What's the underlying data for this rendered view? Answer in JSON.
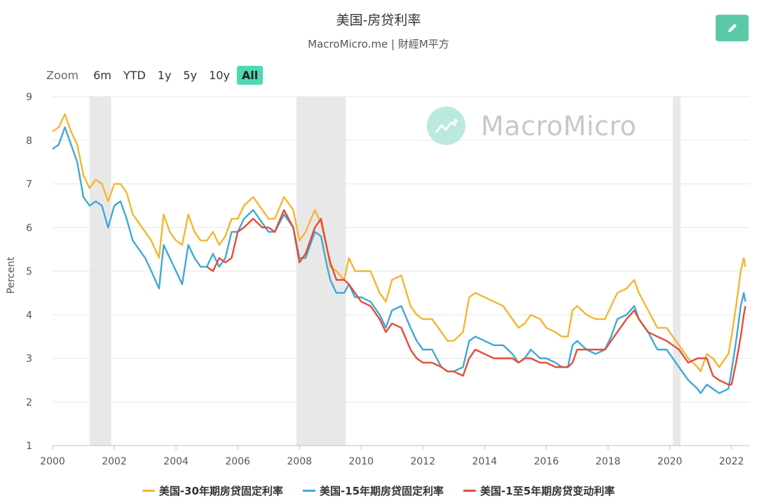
{
  "header": {
    "title": "美国-房贷利率",
    "subtitle": "MacroMicro.me | 財經M平方",
    "edit_icon": "pencil-icon"
  },
  "zoom": {
    "label": "Zoom",
    "buttons": [
      "6m",
      "YTD",
      "1y",
      "5y",
      "10y",
      "All"
    ],
    "active": "All"
  },
  "watermark": {
    "text": "MacroMicro"
  },
  "colors": {
    "s30": "#f5b531",
    "s15": "#3ea9d6",
    "arm": "#e54b3a",
    "recession": "#e8e8e8",
    "grid": "#e6e6e6",
    "accent": "#5bc9a8"
  },
  "chart_data": {
    "type": "line",
    "title": "美国-房贷利率",
    "ylabel": "Percent",
    "ylim": [
      1,
      9
    ],
    "yticks": [
      1,
      2,
      3,
      4,
      5,
      6,
      7,
      8,
      9
    ],
    "xlim": [
      2000.0,
      2022.6
    ],
    "xticks": [
      "2000",
      "2002",
      "2004",
      "2006",
      "2008",
      "2010",
      "2012",
      "2014",
      "2016",
      "2018",
      "2020",
      "2022"
    ],
    "grid": true,
    "legend_position": "bottom",
    "recession_bands": [
      [
        2001.2,
        2001.9
      ],
      [
        2007.9,
        2009.5
      ],
      [
        2020.1,
        2020.35
      ]
    ],
    "series": [
      {
        "name": "美国-30年期房贷固定利率",
        "x": [
          2000.0,
          2000.2,
          2000.4,
          2000.6,
          2000.8,
          2001.0,
          2001.2,
          2001.4,
          2001.6,
          2001.8,
          2002.0,
          2002.2,
          2002.4,
          2002.6,
          2002.8,
          2003.0,
          2003.2,
          2003.45,
          2003.6,
          2003.8,
          2004.0,
          2004.2,
          2004.4,
          2004.6,
          2004.8,
          2005.0,
          2005.2,
          2005.4,
          2005.6,
          2005.8,
          2006.0,
          2006.2,
          2006.5,
          2006.8,
          2007.0,
          2007.2,
          2007.5,
          2007.8,
          2008.0,
          2008.2,
          2008.5,
          2008.7,
          2008.9,
          2009.0,
          2009.2,
          2009.45,
          2009.6,
          2009.8,
          2010.0,
          2010.3,
          2010.6,
          2010.8,
          2011.0,
          2011.3,
          2011.6,
          2011.8,
          2012.0,
          2012.3,
          2012.6,
          2012.8,
          2013.0,
          2013.3,
          2013.5,
          2013.7,
          2014.0,
          2014.3,
          2014.6,
          2014.9,
          2015.1,
          2015.3,
          2015.5,
          2015.8,
          2016.0,
          2016.3,
          2016.5,
          2016.7,
          2016.85,
          2017.0,
          2017.3,
          2017.6,
          2017.9,
          2018.1,
          2018.3,
          2018.6,
          2018.85,
          2019.0,
          2019.3,
          2019.6,
          2019.9,
          2020.1,
          2020.3,
          2020.6,
          2020.9,
          2021.0,
          2021.2,
          2021.4,
          2021.6,
          2021.9,
          2022.0,
          2022.15,
          2022.3,
          2022.4,
          2022.45
        ],
        "values": [
          8.2,
          8.3,
          8.6,
          8.2,
          7.9,
          7.2,
          6.9,
          7.1,
          7.0,
          6.6,
          7.0,
          7.0,
          6.8,
          6.3,
          6.1,
          5.9,
          5.7,
          5.3,
          6.3,
          5.9,
          5.7,
          5.6,
          6.3,
          5.9,
          5.7,
          5.7,
          5.9,
          5.6,
          5.8,
          6.2,
          6.2,
          6.5,
          6.7,
          6.4,
          6.2,
          6.2,
          6.7,
          6.4,
          5.7,
          5.9,
          6.4,
          6.1,
          5.5,
          5.1,
          5.0,
          4.8,
          5.3,
          5.0,
          5.0,
          5.0,
          4.5,
          4.3,
          4.8,
          4.9,
          4.2,
          4.0,
          3.9,
          3.9,
          3.6,
          3.4,
          3.4,
          3.6,
          4.4,
          4.5,
          4.4,
          4.3,
          4.2,
          3.9,
          3.7,
          3.8,
          4.0,
          3.9,
          3.7,
          3.6,
          3.5,
          3.5,
          4.1,
          4.2,
          4.0,
          3.9,
          3.9,
          4.2,
          4.5,
          4.6,
          4.8,
          4.5,
          4.1,
          3.7,
          3.7,
          3.5,
          3.3,
          3.0,
          2.8,
          2.7,
          3.1,
          3.0,
          2.8,
          3.1,
          3.5,
          4.2,
          5.0,
          5.3,
          5.1
        ]
      },
      {
        "name": "美国-15年期房贷固定利率",
        "x": [
          2000.0,
          2000.2,
          2000.4,
          2000.6,
          2000.8,
          2001.0,
          2001.2,
          2001.4,
          2001.6,
          2001.8,
          2002.0,
          2002.2,
          2002.4,
          2002.6,
          2002.8,
          2003.0,
          2003.2,
          2003.45,
          2003.6,
          2003.8,
          2004.0,
          2004.2,
          2004.4,
          2004.6,
          2004.8,
          2005.0,
          2005.2,
          2005.4,
          2005.6,
          2005.8,
          2006.0,
          2006.2,
          2006.5,
          2006.8,
          2007.0,
          2007.2,
          2007.5,
          2007.8,
          2008.0,
          2008.2,
          2008.5,
          2008.7,
          2008.9,
          2009.0,
          2009.2,
          2009.45,
          2009.6,
          2009.8,
          2010.0,
          2010.3,
          2010.6,
          2010.8,
          2011.0,
          2011.3,
          2011.6,
          2011.8,
          2012.0,
          2012.3,
          2012.6,
          2012.8,
          2013.0,
          2013.3,
          2013.5,
          2013.7,
          2014.0,
          2014.3,
          2014.6,
          2014.9,
          2015.1,
          2015.3,
          2015.5,
          2015.8,
          2016.0,
          2016.3,
          2016.5,
          2016.7,
          2016.85,
          2017.0,
          2017.3,
          2017.6,
          2017.9,
          2018.1,
          2018.3,
          2018.6,
          2018.85,
          2019.0,
          2019.3,
          2019.6,
          2019.9,
          2020.1,
          2020.3,
          2020.6,
          2020.9,
          2021.0,
          2021.2,
          2021.4,
          2021.6,
          2021.9,
          2022.0,
          2022.15,
          2022.3,
          2022.4,
          2022.45
        ],
        "values": [
          7.8,
          7.9,
          8.3,
          7.9,
          7.5,
          6.7,
          6.5,
          6.6,
          6.5,
          6.0,
          6.5,
          6.6,
          6.2,
          5.7,
          5.5,
          5.3,
          5.0,
          4.6,
          5.6,
          5.3,
          5.0,
          4.7,
          5.6,
          5.3,
          5.1,
          5.1,
          5.4,
          5.1,
          5.3,
          5.9,
          5.9,
          6.2,
          6.4,
          6.1,
          5.9,
          5.9,
          6.3,
          6.0,
          5.3,
          5.3,
          5.9,
          5.8,
          5.1,
          4.8,
          4.5,
          4.5,
          4.7,
          4.4,
          4.4,
          4.3,
          4.0,
          3.7,
          4.1,
          4.2,
          3.7,
          3.4,
          3.2,
          3.2,
          2.8,
          2.7,
          2.7,
          2.8,
          3.4,
          3.5,
          3.4,
          3.3,
          3.3,
          3.1,
          2.9,
          3.0,
          3.2,
          3.0,
          3.0,
          2.9,
          2.8,
          2.8,
          3.3,
          3.4,
          3.2,
          3.1,
          3.2,
          3.5,
          3.9,
          4.0,
          4.2,
          3.9,
          3.6,
          3.2,
          3.2,
          3.0,
          2.8,
          2.5,
          2.3,
          2.2,
          2.4,
          2.3,
          2.2,
          2.3,
          2.7,
          3.4,
          4.2,
          4.5,
          4.3
        ]
      },
      {
        "name": "美国-1至5年期房贷变动利率",
        "x": [
          2005.0,
          2005.2,
          2005.4,
          2005.6,
          2005.8,
          2006.0,
          2006.2,
          2006.5,
          2006.8,
          2007.0,
          2007.2,
          2007.5,
          2007.8,
          2008.0,
          2008.2,
          2008.5,
          2008.7,
          2008.9,
          2009.0,
          2009.2,
          2009.45,
          2009.6,
          2009.8,
          2010.0,
          2010.3,
          2010.6,
          2010.8,
          2011.0,
          2011.3,
          2011.6,
          2011.8,
          2012.0,
          2012.3,
          2012.6,
          2012.8,
          2013.0,
          2013.3,
          2013.5,
          2013.7,
          2014.0,
          2014.3,
          2014.6,
          2014.9,
          2015.1,
          2015.3,
          2015.5,
          2015.8,
          2016.0,
          2016.3,
          2016.5,
          2016.7,
          2016.85,
          2017.0,
          2017.3,
          2017.6,
          2017.9,
          2018.1,
          2018.3,
          2018.6,
          2018.85,
          2019.0,
          2019.3,
          2019.6,
          2019.9,
          2020.1,
          2020.3,
          2020.6,
          2020.9,
          2021.0,
          2021.2,
          2021.4,
          2021.6,
          2021.9,
          2022.0,
          2022.15,
          2022.3,
          2022.4,
          2022.45
        ],
        "values": [
          5.1,
          5.0,
          5.3,
          5.2,
          5.3,
          5.9,
          6.0,
          6.2,
          6.0,
          6.0,
          5.9,
          6.4,
          6.0,
          5.2,
          5.4,
          6.0,
          6.2,
          5.5,
          5.2,
          4.8,
          4.8,
          4.7,
          4.5,
          4.3,
          4.2,
          3.9,
          3.6,
          3.8,
          3.7,
          3.2,
          3.0,
          2.9,
          2.9,
          2.8,
          2.7,
          2.7,
          2.6,
          3.0,
          3.2,
          3.1,
          3.0,
          3.0,
          3.0,
          2.9,
          3.0,
          3.0,
          2.9,
          2.9,
          2.8,
          2.8,
          2.8,
          2.9,
          3.2,
          3.2,
          3.2,
          3.2,
          3.4,
          3.6,
          3.9,
          4.1,
          3.9,
          3.6,
          3.5,
          3.4,
          3.3,
          3.2,
          2.9,
          3.0,
          3.0,
          3.0,
          2.6,
          2.5,
          2.4,
          2.4,
          2.9,
          3.5,
          4.0,
          4.2
        ]
      }
    ]
  }
}
